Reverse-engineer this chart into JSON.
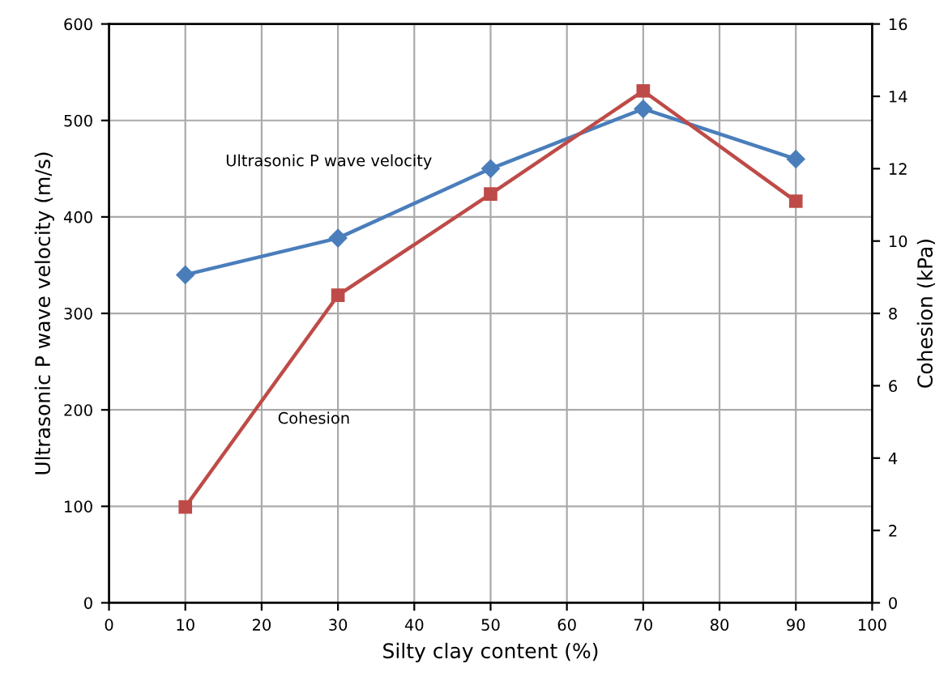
{
  "chart_data": {
    "type": "line",
    "xlabel": "Silty clay content (%)",
    "ylabel": "Ultrasonic P wave velocity (m/s)",
    "y2label": "Cohesion (kPa)",
    "x": [
      10,
      30,
      50,
      70,
      90
    ],
    "xlim": [
      0,
      100
    ],
    "xticks": [
      0,
      10,
      20,
      30,
      40,
      50,
      60,
      70,
      80,
      90,
      100
    ],
    "ylim": [
      0,
      600
    ],
    "yticks": [
      0,
      100,
      200,
      300,
      400,
      500,
      600
    ],
    "y2lim": [
      0,
      16
    ],
    "y2ticks": [
      0,
      2,
      4,
      6,
      8,
      10,
      12,
      14,
      16
    ],
    "grid": true,
    "line_style": "solid",
    "series": [
      {
        "name": "Ultrasonic P wave velocity",
        "color": "#4a7ebb",
        "values": [
          340,
          378,
          450,
          512,
          460
        ],
        "marker": "diamond"
      },
      {
        "name": "Cohesion",
        "color": "#be4b48",
        "values": [
          2.65,
          8.5,
          11.3,
          14.15,
          11.1
        ],
        "marker": "square",
        "axis": "y2"
      }
    ]
  }
}
